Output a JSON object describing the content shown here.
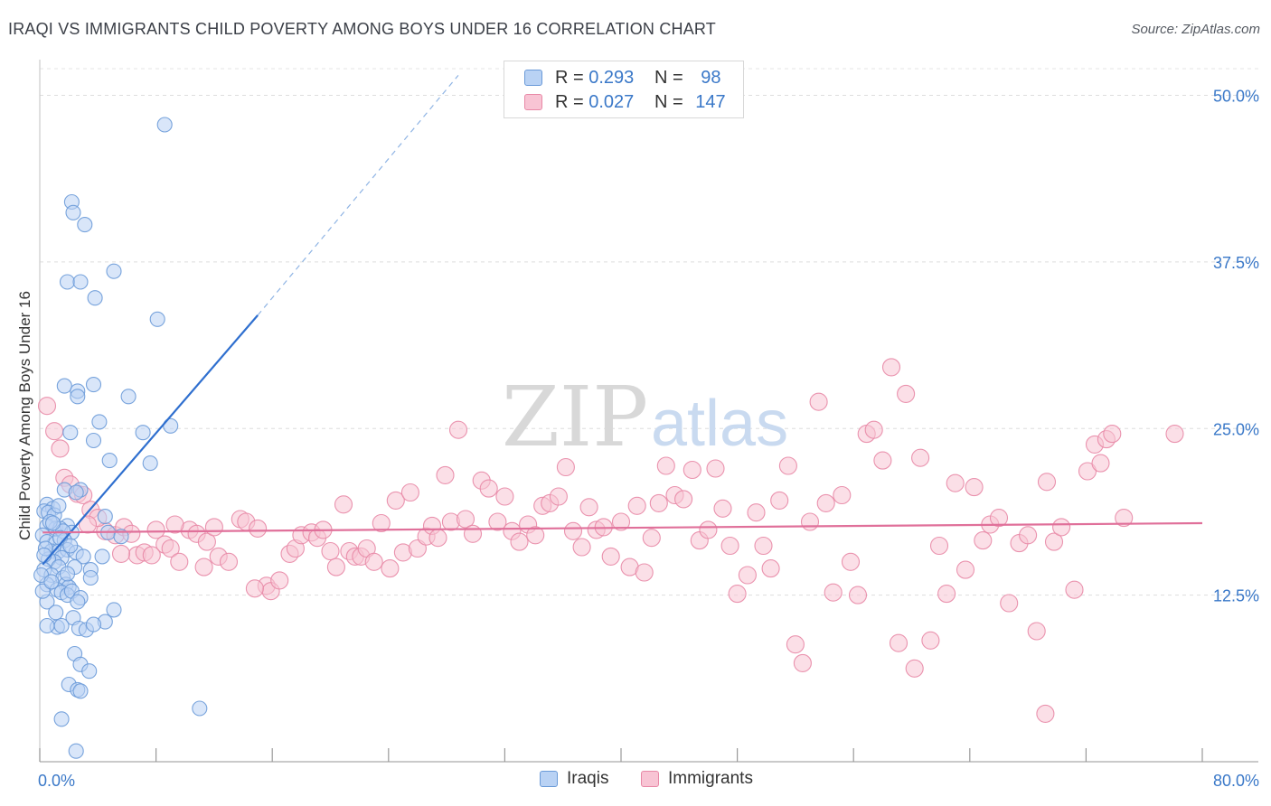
{
  "title": "IRAQI VS IMMIGRANTS CHILD POVERTY AMONG BOYS UNDER 16 CORRELATION CHART",
  "source": "Source: ZipAtlas.com",
  "watermark": {
    "zip": "ZIP",
    "atlas": "atlas"
  },
  "legend_top": {
    "rows": [
      {
        "r_label": "R =",
        "r_value": "0.293",
        "n_label": "N =",
        "n_value": "98",
        "color": "#6a9ad8"
      },
      {
        "r_label": "R =",
        "r_value": "0.027",
        "n_label": "N =",
        "n_value": "147",
        "color": "#e888a6"
      }
    ]
  },
  "legend_bottom": {
    "iraqis": "Iraqis",
    "immigrants": "Immigrants"
  },
  "chart_data": {
    "type": "scatter",
    "title": "IRAQI VS IMMIGRANTS CHILD POVERTY AMONG BOYS UNDER 16 CORRELATION CHART",
    "xlabel": "",
    "ylabel": "Child Poverty Among Boys Under 16",
    "xlim": [
      0,
      80
    ],
    "ylim": [
      0,
      52
    ],
    "x_tick_labels": [
      "0.0%",
      "80.0%"
    ],
    "y_ticks": [
      12.5,
      25.0,
      37.5,
      50.0
    ],
    "y_tick_labels": [
      "12.5%",
      "25.0%",
      "37.5%",
      "50.0%"
    ],
    "grid": true,
    "series": [
      {
        "name": "Iraqis",
        "color": "#6a9ad8",
        "fill": "#b9d2f4",
        "R": 0.293,
        "N": 98,
        "trend": {
          "x0": 0.2,
          "y0": 14.8,
          "x1": 15.0,
          "y1": 33.5,
          "dash_to_x": 28.8,
          "dash_to_y": 51.5,
          "color": "#2f6fcf"
        },
        "points": [
          [
            8.6,
            47.8
          ],
          [
            2.2,
            42.0
          ],
          [
            2.3,
            41.2
          ],
          [
            3.1,
            40.3
          ],
          [
            5.1,
            36.8
          ],
          [
            1.9,
            36.0
          ],
          [
            2.8,
            36.0
          ],
          [
            3.8,
            34.8
          ],
          [
            8.1,
            33.2
          ],
          [
            1.7,
            28.2
          ],
          [
            3.7,
            28.3
          ],
          [
            2.6,
            27.8
          ],
          [
            2.6,
            27.4
          ],
          [
            6.1,
            27.4
          ],
          [
            2.1,
            24.7
          ],
          [
            3.7,
            24.1
          ],
          [
            4.1,
            25.5
          ],
          [
            9.0,
            25.2
          ],
          [
            7.1,
            24.7
          ],
          [
            4.8,
            22.6
          ],
          [
            7.6,
            22.4
          ],
          [
            2.8,
            20.4
          ],
          [
            1.7,
            20.4
          ],
          [
            2.5,
            20.2
          ],
          [
            0.5,
            19.3
          ],
          [
            0.9,
            19.0
          ],
          [
            0.3,
            18.8
          ],
          [
            0.6,
            18.7
          ],
          [
            1.0,
            18.5
          ],
          [
            4.5,
            18.4
          ],
          [
            0.5,
            17.7
          ],
          [
            1.1,
            17.5
          ],
          [
            1.9,
            17.7
          ],
          [
            1.4,
            17.5
          ],
          [
            2.2,
            17.2
          ],
          [
            1.6,
            17.3
          ],
          [
            4.7,
            17.2
          ],
          [
            5.6,
            16.9
          ],
          [
            0.2,
            17.0
          ],
          [
            0.5,
            16.5
          ],
          [
            1.1,
            16.4
          ],
          [
            1.7,
            16.6
          ],
          [
            0.8,
            15.8
          ],
          [
            1.3,
            15.8
          ],
          [
            1.9,
            15.9
          ],
          [
            2.5,
            15.7
          ],
          [
            1.5,
            15.3
          ],
          [
            1.0,
            15.0
          ],
          [
            3.0,
            15.4
          ],
          [
            4.3,
            15.4
          ],
          [
            0.6,
            15.2
          ],
          [
            1.3,
            14.6
          ],
          [
            2.4,
            14.6
          ],
          [
            3.5,
            14.4
          ],
          [
            0.3,
            14.4
          ],
          [
            0.8,
            14.0
          ],
          [
            1.6,
            13.8
          ],
          [
            3.5,
            13.8
          ],
          [
            0.5,
            13.3
          ],
          [
            1.8,
            13.3
          ],
          [
            2.0,
            13.1
          ],
          [
            1.2,
            12.9
          ],
          [
            1.5,
            12.7
          ],
          [
            1.9,
            12.5
          ],
          [
            2.2,
            12.8
          ],
          [
            2.8,
            12.3
          ],
          [
            0.5,
            12.0
          ],
          [
            2.6,
            12.0
          ],
          [
            5.1,
            11.4
          ],
          [
            1.1,
            11.2
          ],
          [
            2.3,
            10.8
          ],
          [
            1.2,
            10.1
          ],
          [
            0.5,
            10.2
          ],
          [
            1.5,
            10.2
          ],
          [
            2.7,
            10.0
          ],
          [
            4.5,
            10.5
          ],
          [
            3.2,
            9.9
          ],
          [
            2.4,
            8.1
          ],
          [
            2.8,
            7.3
          ],
          [
            3.4,
            6.8
          ],
          [
            2.0,
            5.8
          ],
          [
            2.6,
            5.4
          ],
          [
            2.8,
            5.3
          ],
          [
            1.5,
            3.2
          ],
          [
            11.0,
            4.0
          ],
          [
            2.5,
            0.8
          ],
          [
            0.1,
            14.0
          ],
          [
            0.2,
            12.8
          ],
          [
            0.4,
            16.0
          ],
          [
            0.7,
            18.0
          ],
          [
            1.3,
            19.2
          ],
          [
            0.9,
            17.9
          ],
          [
            1.4,
            16.8
          ],
          [
            0.3,
            15.5
          ],
          [
            0.8,
            13.5
          ],
          [
            1.9,
            14.1
          ],
          [
            3.7,
            10.3
          ],
          [
            2.1,
            16.2
          ]
        ]
      },
      {
        "name": "Immigrants",
        "color": "#e888a6",
        "fill": "#f8c4d4",
        "R": 0.027,
        "N": 147,
        "trend": {
          "x0": 0.2,
          "y0": 17.2,
          "x1": 80.0,
          "y1": 17.9,
          "color": "#e0709a"
        },
        "points": [
          [
            0.5,
            26.7
          ],
          [
            1.0,
            24.8
          ],
          [
            1.4,
            23.5
          ],
          [
            1.7,
            21.3
          ],
          [
            2.1,
            20.8
          ],
          [
            2.6,
            20.1
          ],
          [
            3.0,
            20.0
          ],
          [
            3.5,
            18.9
          ],
          [
            4.5,
            17.3
          ],
          [
            5.2,
            17.0
          ],
          [
            5.8,
            17.6
          ],
          [
            6.3,
            17.1
          ],
          [
            6.7,
            15.5
          ],
          [
            7.2,
            15.7
          ],
          [
            8.0,
            17.4
          ],
          [
            8.6,
            16.3
          ],
          [
            9.0,
            16.0
          ],
          [
            9.6,
            15.0
          ],
          [
            10.3,
            17.4
          ],
          [
            10.8,
            17.1
          ],
          [
            11.5,
            16.5
          ],
          [
            12.3,
            15.4
          ],
          [
            13.0,
            15.0
          ],
          [
            13.8,
            18.2
          ],
          [
            14.2,
            18.0
          ],
          [
            15.0,
            17.5
          ],
          [
            15.6,
            13.2
          ],
          [
            15.9,
            12.8
          ],
          [
            16.5,
            13.6
          ],
          [
            17.2,
            15.6
          ],
          [
            17.6,
            16.0
          ],
          [
            18.0,
            17.0
          ],
          [
            18.7,
            17.2
          ],
          [
            19.1,
            16.8
          ],
          [
            19.5,
            17.4
          ],
          [
            20.0,
            15.8
          ],
          [
            20.4,
            14.6
          ],
          [
            20.9,
            19.3
          ],
          [
            21.3,
            15.8
          ],
          [
            21.7,
            15.4
          ],
          [
            22.1,
            15.4
          ],
          [
            22.5,
            16.0
          ],
          [
            23.0,
            15.0
          ],
          [
            23.5,
            17.9
          ],
          [
            24.1,
            14.5
          ],
          [
            24.5,
            19.6
          ],
          [
            25.0,
            15.7
          ],
          [
            25.5,
            20.2
          ],
          [
            26.0,
            16.0
          ],
          [
            26.6,
            16.9
          ],
          [
            27.0,
            17.7
          ],
          [
            27.4,
            16.8
          ],
          [
            27.9,
            21.5
          ],
          [
            28.3,
            18.0
          ],
          [
            28.8,
            24.9
          ],
          [
            29.3,
            18.2
          ],
          [
            29.8,
            17.1
          ],
          [
            30.4,
            21.1
          ],
          [
            30.9,
            20.5
          ],
          [
            31.5,
            18.0
          ],
          [
            32.0,
            19.9
          ],
          [
            32.5,
            17.3
          ],
          [
            33.0,
            16.5
          ],
          [
            33.6,
            17.8
          ],
          [
            34.1,
            17.0
          ],
          [
            34.6,
            19.2
          ],
          [
            35.1,
            19.4
          ],
          [
            35.7,
            19.9
          ],
          [
            36.2,
            22.1
          ],
          [
            36.7,
            17.3
          ],
          [
            37.3,
            16.1
          ],
          [
            37.8,
            19.1
          ],
          [
            38.3,
            17.4
          ],
          [
            38.8,
            17.6
          ],
          [
            39.3,
            15.4
          ],
          [
            40.0,
            18.0
          ],
          [
            40.6,
            14.6
          ],
          [
            41.1,
            19.2
          ],
          [
            41.6,
            14.2
          ],
          [
            42.1,
            16.8
          ],
          [
            42.6,
            19.4
          ],
          [
            43.1,
            22.2
          ],
          [
            43.7,
            20.0
          ],
          [
            44.3,
            19.7
          ],
          [
            44.9,
            21.9
          ],
          [
            45.4,
            16.6
          ],
          [
            46.0,
            17.4
          ],
          [
            46.5,
            22.0
          ],
          [
            47.0,
            19.0
          ],
          [
            47.5,
            16.2
          ],
          [
            48.0,
            12.6
          ],
          [
            48.7,
            14.0
          ],
          [
            49.3,
            18.7
          ],
          [
            49.8,
            16.2
          ],
          [
            50.3,
            14.5
          ],
          [
            50.9,
            19.6
          ],
          [
            51.5,
            22.2
          ],
          [
            52.0,
            8.8
          ],
          [
            52.5,
            7.4
          ],
          [
            53.0,
            18.0
          ],
          [
            53.6,
            27.0
          ],
          [
            54.1,
            19.4
          ],
          [
            54.6,
            12.7
          ],
          [
            55.2,
            20.0
          ],
          [
            55.8,
            15.0
          ],
          [
            56.3,
            12.5
          ],
          [
            56.9,
            24.6
          ],
          [
            57.4,
            24.9
          ],
          [
            58.0,
            22.6
          ],
          [
            58.6,
            29.6
          ],
          [
            59.1,
            8.9
          ],
          [
            59.6,
            27.6
          ],
          [
            60.2,
            7.0
          ],
          [
            60.6,
            22.8
          ],
          [
            61.3,
            9.1
          ],
          [
            61.9,
            16.2
          ],
          [
            62.4,
            12.6
          ],
          [
            63.0,
            20.9
          ],
          [
            63.7,
            14.4
          ],
          [
            64.3,
            20.6
          ],
          [
            64.9,
            16.6
          ],
          [
            65.4,
            17.8
          ],
          [
            66.0,
            18.3
          ],
          [
            66.7,
            11.9
          ],
          [
            67.4,
            16.4
          ],
          [
            68.0,
            17.0
          ],
          [
            68.6,
            9.8
          ],
          [
            69.3,
            21.0
          ],
          [
            69.8,
            16.5
          ],
          [
            70.3,
            17.6
          ],
          [
            71.2,
            12.9
          ],
          [
            72.1,
            21.8
          ],
          [
            72.6,
            23.8
          ],
          [
            73.0,
            22.4
          ],
          [
            73.4,
            24.2
          ],
          [
            73.8,
            24.6
          ],
          [
            74.6,
            18.3
          ],
          [
            78.1,
            24.6
          ],
          [
            69.2,
            3.6
          ],
          [
            12.0,
            17.6
          ],
          [
            7.7,
            15.5
          ],
          [
            5.6,
            15.6
          ],
          [
            14.8,
            13.0
          ],
          [
            11.3,
            14.6
          ],
          [
            4.0,
            18.3
          ],
          [
            3.3,
            17.8
          ],
          [
            9.3,
            17.8
          ]
        ]
      }
    ]
  }
}
